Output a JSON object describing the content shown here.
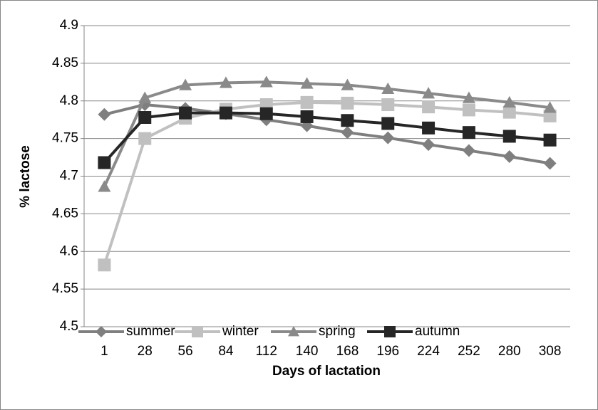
{
  "chart_data": {
    "type": "line",
    "x_label": "Days of lactation",
    "y_label": "% lactose",
    "categories": [
      "1",
      "28",
      "56",
      "84",
      "112",
      "140",
      "168",
      "196",
      "224",
      "252",
      "280",
      "308"
    ],
    "series": [
      {
        "name": "summer",
        "color": "#7f7f7f",
        "marker": "diamond",
        "values": [
          4.782,
          4.795,
          4.79,
          4.783,
          4.775,
          4.767,
          4.758,
          4.751,
          4.742,
          4.734,
          4.726,
          4.717
        ]
      },
      {
        "name": "winter",
        "color": "#c0c0c0",
        "marker": "square",
        "values": [
          4.582,
          4.75,
          4.777,
          4.789,
          4.795,
          4.798,
          4.797,
          4.795,
          4.792,
          4.788,
          4.785,
          4.78
        ]
      },
      {
        "name": "spring",
        "color": "#8a8a8a",
        "marker": "triangle",
        "values": [
          4.686,
          4.804,
          4.821,
          4.824,
          4.825,
          4.823,
          4.821,
          4.816,
          4.81,
          4.804,
          4.798,
          4.791
        ]
      },
      {
        "name": "autumn",
        "color": "#262626",
        "marker": "square",
        "values": [
          4.718,
          4.778,
          4.784,
          4.784,
          4.783,
          4.779,
          4.774,
          4.77,
          4.764,
          4.758,
          4.753,
          4.748
        ]
      }
    ],
    "ylim": [
      4.5,
      4.9
    ],
    "yticks": [
      4.5,
      4.55,
      4.6,
      4.65,
      4.7,
      4.75,
      4.8,
      4.85,
      4.9
    ],
    "grid": true,
    "legend": "bottom"
  }
}
